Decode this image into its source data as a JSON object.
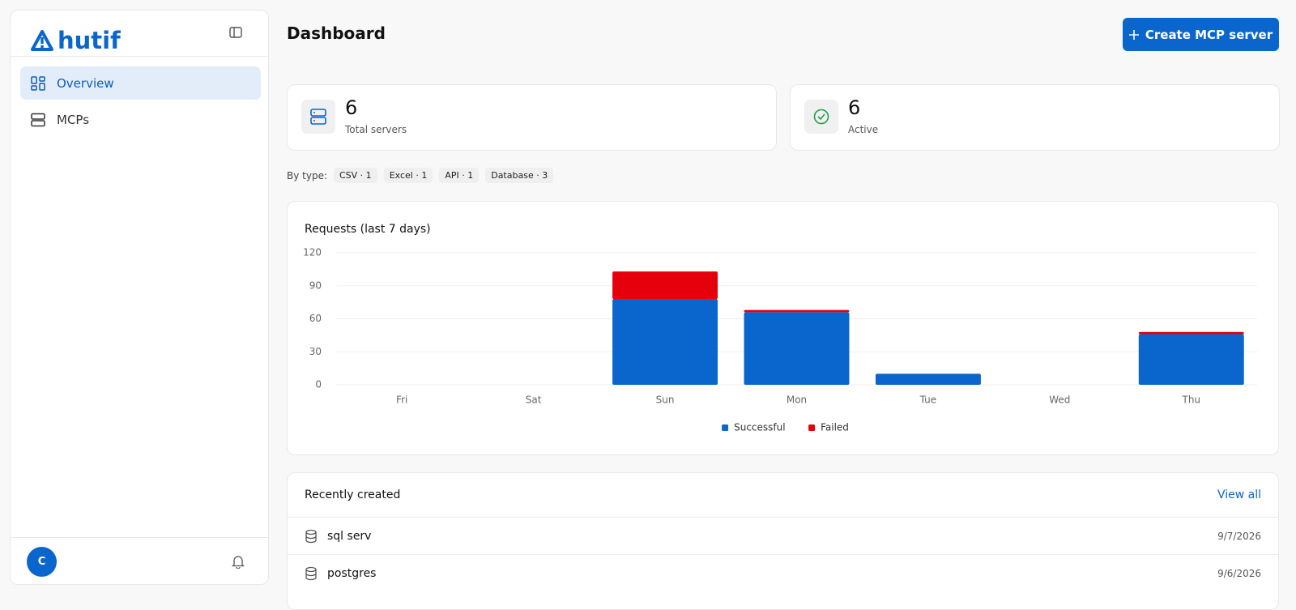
{
  "sidebar": {
    "brand": "hutif",
    "nav": [
      {
        "label": "Overview",
        "active": true
      },
      {
        "label": "MCPs",
        "active": false
      }
    ],
    "avatar": "C"
  },
  "header": {
    "title": "Dashboard",
    "button": "Create MCP server"
  },
  "stats": [
    {
      "value": 6,
      "label": "Total servers"
    },
    {
      "value": 6,
      "label": "Active"
    }
  ],
  "by_type": {
    "label": "By type:",
    "items": [
      "CSV · 1",
      "Excel · 1",
      "API · 1",
      "Database · 3"
    ]
  },
  "chart_data": {
    "type": "bar",
    "stacked": true,
    "title": "Requests (last 7 days)",
    "categories": [
      "Fri",
      "Sat",
      "Sun",
      "Mon",
      "Tue",
      "Wed",
      "Thu"
    ],
    "series": [
      {
        "name": "Successful",
        "color": "#0a66cc",
        "values": [
          0,
          0,
          78,
          66,
          10,
          0,
          46
        ]
      },
      {
        "name": "Failed",
        "color": "#e5000b",
        "values": [
          0,
          0,
          25,
          2,
          0,
          0,
          2
        ]
      }
    ],
    "ylim": [
      0,
      120
    ],
    "yticks": [
      0,
      30,
      60,
      90,
      120
    ],
    "grid": true,
    "legend": "bottom"
  },
  "recent": {
    "title": "Recently created",
    "link": "View all",
    "rows": [
      {
        "name": "sql serv",
        "date": "9/7/2026"
      },
      {
        "name": "postgres",
        "date": "9/6/2026"
      }
    ]
  }
}
